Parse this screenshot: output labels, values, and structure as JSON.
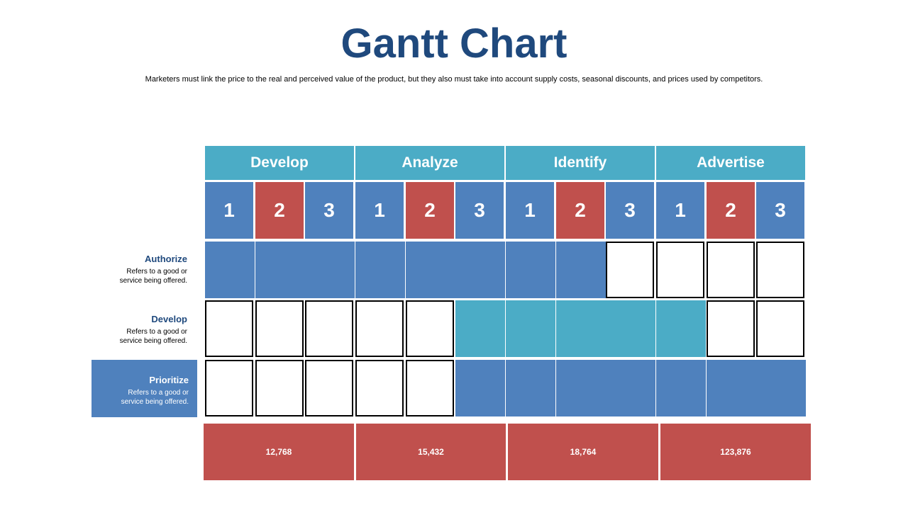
{
  "header": {
    "title": "Gantt Chart",
    "subtitle": "Marketers must link the price to the real and perceived value of the product, but they also must take into account supply costs, seasonal discounts, and prices used by competitors."
  },
  "phases": [
    "Develop",
    "Analyze",
    "Identify",
    "Advertise"
  ],
  "steps": [
    "1",
    "2",
    "3",
    "1",
    "2",
    "3",
    "1",
    "2",
    "3",
    "1",
    "2",
    "3"
  ],
  "tasks": [
    {
      "name": "Authorize",
      "desc_line1": "Refers to a good or",
      "desc_line2": "service being offered."
    },
    {
      "name": "Develop",
      "desc_line1": "Refers to a good or",
      "desc_line2": "service being offered."
    },
    {
      "name": "Prioritize",
      "desc_line1": "Refers to a good or",
      "desc_line2": "service being offered."
    }
  ],
  "chart_data": {
    "type": "table",
    "columns_phases": [
      "Develop",
      "Analyze",
      "Identify",
      "Advertise"
    ],
    "column_steps": [
      "1",
      "2",
      "3",
      "1",
      "2",
      "3",
      "1",
      "2",
      "3",
      "1",
      "2",
      "3"
    ],
    "rows": [
      {
        "task": "Authorize",
        "active_from_column": 1,
        "active_to_column": 8,
        "fill": "blue"
      },
      {
        "task": "Develop",
        "active_from_column": 6,
        "active_to_column": 10,
        "fill": "teal"
      },
      {
        "task": "Prioritize",
        "active_from_column": 6,
        "active_to_column": 12,
        "fill": "blue"
      }
    ],
    "totals": [
      "12,768",
      "15,432",
      "18,764",
      "123,876"
    ]
  },
  "totals": [
    "12,768",
    "15,432",
    "18,764",
    "123,876"
  ],
  "colors": {
    "title": "#1f497d",
    "phase_header": "#4bacc6",
    "step_blue": "#4f81bd",
    "step_red": "#c0504d",
    "bar_blue": "#4f81bd",
    "bar_teal": "#4bacc6",
    "totals": "#c0504d"
  }
}
